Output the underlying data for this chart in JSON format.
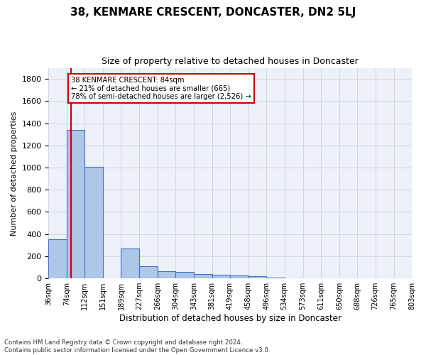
{
  "title": "38, KENMARE CRESCENT, DONCASTER, DN2 5LJ",
  "subtitle": "Size of property relative to detached houses in Doncaster",
  "xlabel": "Distribution of detached houses by size in Doncaster",
  "ylabel": "Number of detached properties",
  "footnote1": "Contains HM Land Registry data © Crown copyright and database right 2024.",
  "footnote2": "Contains public sector information licensed under the Open Government Licence v3.0.",
  "bin_edges": [
    36,
    74,
    112,
    151,
    189,
    227,
    266,
    304,
    343,
    381,
    419,
    458,
    496,
    534,
    573,
    611,
    650,
    688,
    726,
    765,
    803
  ],
  "bin_labels": [
    "36sqm",
    "74sqm",
    "112sqm",
    "151sqm",
    "189sqm",
    "227sqm",
    "266sqm",
    "304sqm",
    "343sqm",
    "381sqm",
    "419sqm",
    "458sqm",
    "496sqm",
    "534sqm",
    "573sqm",
    "611sqm",
    "650sqm",
    "688sqm",
    "726sqm",
    "765sqm",
    "803sqm"
  ],
  "bar_heights": [
    350,
    1340,
    1005,
    0,
    270,
    110,
    65,
    55,
    42,
    30,
    25,
    20,
    5,
    0,
    0,
    0,
    0,
    0,
    0,
    0
  ],
  "bar_color": "#aec6e8",
  "bar_edge_color": "#4472c4",
  "grid_color": "#d0d8e8",
  "bg_color": "#edf2f9",
  "property_size": 84,
  "vline_color": "#cc0000",
  "annotation_text1": "38 KENMARE CRESCENT: 84sqm",
  "annotation_text2": "← 21% of detached houses are smaller (665)",
  "annotation_text3": "78% of semi-detached houses are larger (2,526) →",
  "annotation_box_color": "#ffffff",
  "annotation_box_edge": "#cc0000",
  "ylim": [
    0,
    1900
  ],
  "yticks": [
    0,
    200,
    400,
    600,
    800,
    1000,
    1200,
    1400,
    1600,
    1800
  ]
}
